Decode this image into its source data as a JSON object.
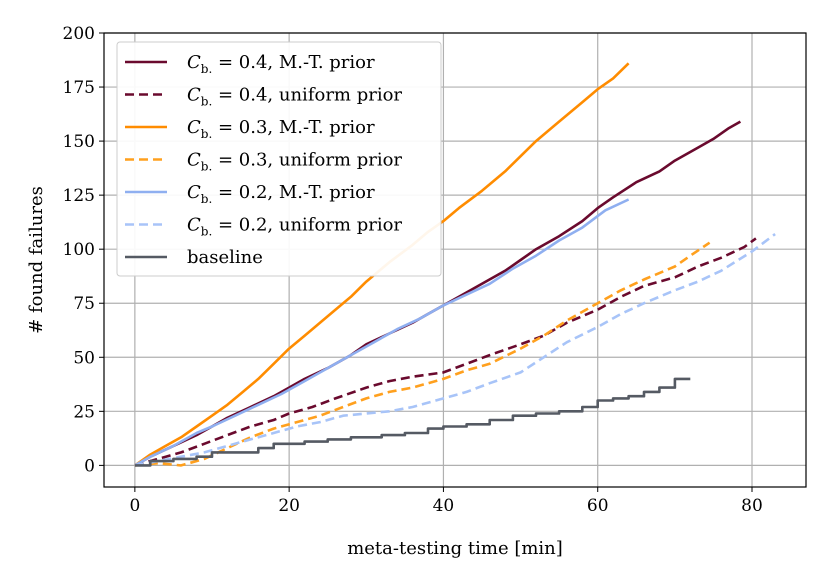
{
  "chart_data": {
    "type": "line",
    "title": "",
    "xlabel": "meta-testing time [min]",
    "ylabel": "# found failures",
    "xlim": [
      -4,
      87
    ],
    "ylim": [
      -10,
      200
    ],
    "xticks": [
      0,
      20,
      40,
      60,
      80
    ],
    "yticks": [
      0,
      25,
      50,
      75,
      100,
      125,
      150,
      175,
      200
    ],
    "grid": true,
    "legend_position": "top-left",
    "series": [
      {
        "name": "C_b. = 0.4, M.-T. prior",
        "legend_prefix": "C",
        "legend_sub": "b.",
        "legend_suffix": " = 0.4, M.-T. prior",
        "color": "#6a0a2e",
        "dash": "solid",
        "x": [
          0,
          2,
          5,
          8,
          10,
          12,
          15,
          18,
          20,
          22,
          25,
          28,
          30,
          33,
          36,
          38,
          40,
          42,
          45,
          48,
          50,
          52,
          55,
          58,
          60,
          62,
          65,
          68,
          70,
          73,
          75,
          77,
          78.5
        ],
        "y": [
          0,
          4,
          9,
          14,
          18,
          22,
          27,
          32,
          36,
          40,
          45,
          51,
          56,
          61,
          66,
          70,
          74,
          78,
          84,
          90,
          95,
          100,
          106,
          113,
          119,
          124,
          131,
          136,
          141,
          147,
          151,
          156,
          159
        ]
      },
      {
        "name": "C_b. = 0.4, uniform prior",
        "legend_prefix": "C",
        "legend_sub": "b.",
        "legend_suffix": " = 0.4, uniform prior",
        "color": "#6a0a2e",
        "dash": "dashed",
        "x": [
          0,
          3,
          6,
          9,
          12,
          15,
          18,
          20,
          23,
          26,
          30,
          33,
          36,
          40,
          43,
          46,
          50,
          53,
          56,
          60,
          63,
          66,
          70,
          73,
          76,
          79,
          80.5
        ],
        "y": [
          0,
          3,
          6,
          10,
          14,
          18,
          21,
          24,
          27,
          31,
          36,
          39,
          41,
          43,
          47,
          51,
          56,
          60,
          66,
          72,
          78,
          83,
          87,
          92,
          96,
          101,
          105
        ]
      },
      {
        "name": "C_b. = 0.3, M.-T. prior",
        "legend_prefix": "C",
        "legend_sub": "b.",
        "legend_suffix": " = 0.3, M.-T. prior",
        "color": "#ff8c00",
        "dash": "solid",
        "x": [
          0,
          2,
          4,
          6,
          8,
          10,
          12,
          14,
          16,
          18,
          20,
          22,
          24,
          26,
          28,
          30,
          33,
          36,
          38,
          40,
          42,
          45,
          48,
          50,
          52,
          55,
          58,
          60,
          62,
          64
        ],
        "y": [
          0,
          5,
          9,
          13,
          18,
          23,
          28,
          34,
          40,
          47,
          54,
          60,
          66,
          72,
          78,
          85,
          94,
          102,
          108,
          113,
          119,
          127,
          136,
          143,
          150,
          159,
          168,
          174,
          179,
          186
        ]
      },
      {
        "name": "C_b. = 0.3, uniform prior",
        "legend_prefix": "C",
        "legend_sub": "b.",
        "legend_suffix": " = 0.3, uniform prior",
        "color": "#ffa01e",
        "dash": "dashed",
        "x": [
          0,
          3,
          6,
          9,
          12,
          15,
          18,
          21,
          24,
          27,
          30,
          33,
          36,
          40,
          43,
          46,
          50,
          53,
          56,
          60,
          63,
          66,
          70,
          72,
          74.5
        ],
        "y": [
          0,
          1,
          0,
          3,
          8,
          13,
          17,
          20,
          23,
          27,
          31,
          34,
          36,
          40,
          44,
          47,
          54,
          60,
          67,
          75,
          81,
          86,
          92,
          97,
          103
        ]
      },
      {
        "name": "C_b. = 0.2, M.-T. prior",
        "legend_prefix": "C",
        "legend_sub": "b.",
        "legend_suffix": " = 0.2, M.-T. prior",
        "color": "#8faff0",
        "dash": "solid",
        "x": [
          0,
          2,
          5,
          8,
          10,
          13,
          16,
          19,
          22,
          25,
          28,
          31,
          34,
          37,
          40,
          43,
          46,
          49,
          52,
          55,
          58,
          61,
          64
        ],
        "y": [
          0,
          4,
          9,
          15,
          18,
          23,
          28,
          33,
          39,
          45,
          51,
          57,
          63,
          68,
          74,
          79,
          84,
          91,
          97,
          104,
          110,
          118,
          123
        ]
      },
      {
        "name": "C_b. = 0.2, uniform prior",
        "legend_prefix": "C",
        "legend_sub": "b.",
        "legend_suffix": " = 0.2, uniform prior",
        "color": "#a8c4f8",
        "dash": "dashed",
        "x": [
          0,
          3,
          6,
          9,
          12,
          15,
          18,
          21,
          24,
          27,
          30,
          33,
          36,
          40,
          43,
          46,
          50,
          53,
          56,
          60,
          63,
          66,
          70,
          73,
          76,
          80,
          83
        ],
        "y": [
          0,
          2,
          4,
          6,
          9,
          12,
          15,
          18,
          20,
          23,
          24,
          25,
          27,
          31,
          34,
          38,
          43,
          50,
          57,
          64,
          70,
          75,
          81,
          85,
          90,
          99,
          107
        ]
      },
      {
        "name": "baseline",
        "legend_prefix": "baseline",
        "legend_sub": "",
        "legend_suffix": "",
        "color": "#555a63",
        "dash": "solid",
        "step": true,
        "x": [
          0,
          2,
          5,
          8,
          10,
          13,
          16,
          18,
          22,
          25,
          28,
          32,
          35,
          38,
          40,
          43,
          46,
          49,
          52,
          55,
          58,
          60,
          62,
          64,
          66,
          68,
          70,
          72
        ],
        "y": [
          0,
          2,
          3,
          4,
          6,
          6,
          8,
          10,
          11,
          12,
          13,
          14,
          15,
          17,
          18,
          19,
          21,
          23,
          24,
          25,
          27,
          30,
          31,
          32,
          34,
          36,
          40,
          40
        ]
      }
    ]
  }
}
